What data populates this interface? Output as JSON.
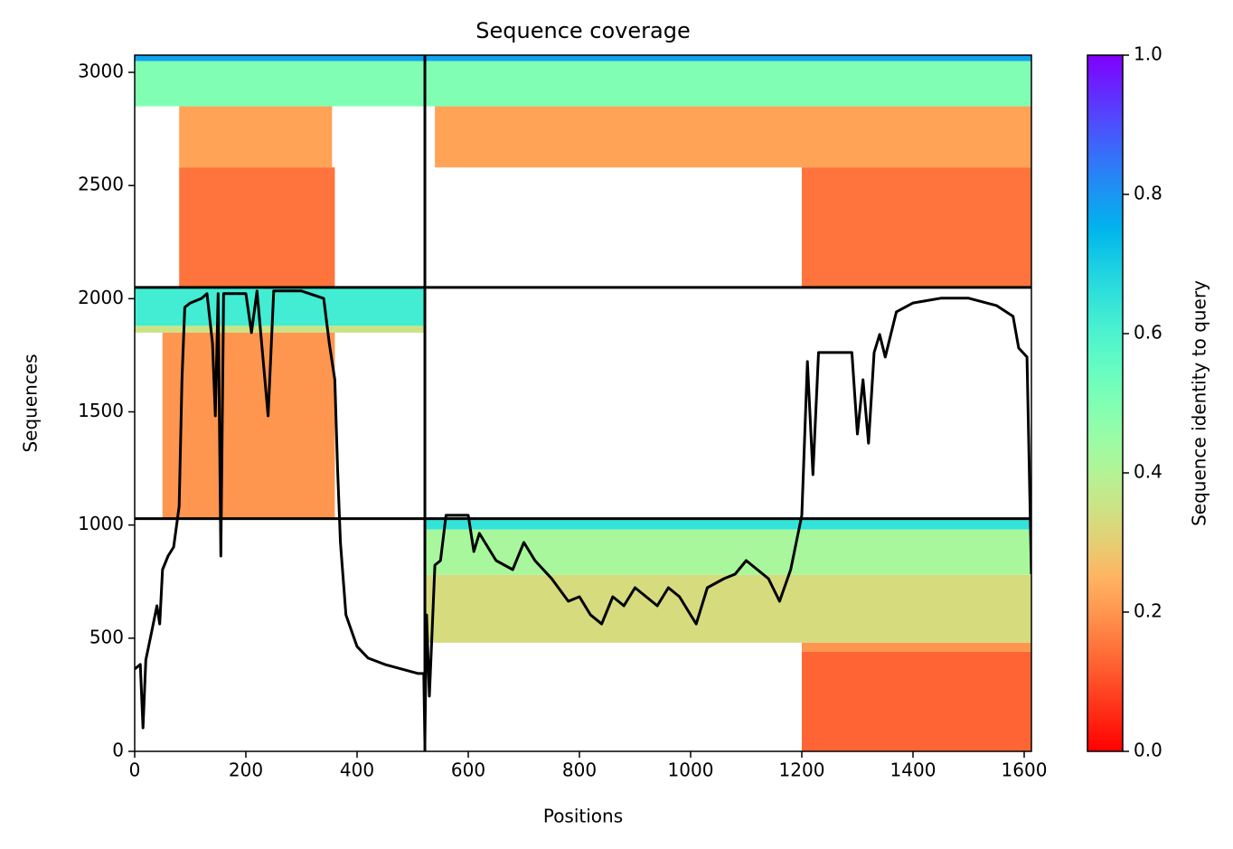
{
  "chart_data": {
    "type": "coverage",
    "title": "Sequence coverage",
    "xlabel": "Positions",
    "ylabel": "Sequences",
    "colorbar_label": "Sequence identity to query",
    "xlim": [
      0,
      1613
    ],
    "ylim": [
      0,
      3076
    ],
    "xticks": [
      0,
      200,
      400,
      600,
      800,
      1000,
      1200,
      1400,
      1600
    ],
    "yticks": [
      0,
      500,
      1000,
      1500,
      2000,
      2500,
      3000
    ],
    "clim": [
      0,
      1
    ],
    "cticks": [
      {
        "value": 0,
        "label": "0.0"
      },
      {
        "value": 0.2,
        "label": "0.2"
      },
      {
        "value": 0.4,
        "label": "0.4"
      },
      {
        "value": 0.6,
        "label": "0.6"
      },
      {
        "value": 0.8,
        "label": "0.8"
      },
      {
        "value": 1,
        "label": "1.0"
      }
    ],
    "colormap": "rainbow_r",
    "line_color": "#000000",
    "boundaries_x": [
      522
    ],
    "boundaries_y": [
      1028,
      2050
    ],
    "regions": [
      {
        "x": [
          0,
          522
        ],
        "y": [
          2850,
          3050
        ],
        "identity": 0.5
      },
      {
        "x": [
          0,
          522
        ],
        "y": [
          3050,
          3076
        ],
        "identity": 0.78
      },
      {
        "x": [
          80,
          355
        ],
        "y": [
          2580,
          2850
        ],
        "identity": 0.22
      },
      {
        "x": [
          80,
          360
        ],
        "y": [
          2050,
          2580
        ],
        "identity": 0.15
      },
      {
        "x": [
          522,
          1613
        ],
        "y": [
          2850,
          3050
        ],
        "identity": 0.5
      },
      {
        "x": [
          522,
          1613
        ],
        "y": [
          3050,
          3076
        ],
        "identity": 0.78
      },
      {
        "x": [
          540,
          1613
        ],
        "y": [
          2580,
          2850
        ],
        "identity": 0.22
      },
      {
        "x": [
          1200,
          1613
        ],
        "y": [
          2050,
          2580
        ],
        "identity": 0.15
      },
      {
        "x": [
          0,
          522
        ],
        "y": [
          1880,
          2050
        ],
        "identity": 0.62
      },
      {
        "x": [
          0,
          522
        ],
        "y": [
          1850,
          1880
        ],
        "identity": 0.35
      },
      {
        "x": [
          50,
          360
        ],
        "y": [
          1028,
          1850
        ],
        "identity": 0.2
      },
      {
        "x": [
          522,
          1613
        ],
        "y": [
          980,
          1028
        ],
        "identity": 0.65
      },
      {
        "x": [
          522,
          1613
        ],
        "y": [
          780,
          980
        ],
        "identity": 0.42
      },
      {
        "x": [
          522,
          1613
        ],
        "y": [
          480,
          780
        ],
        "identity": 0.33
      },
      {
        "x": [
          1200,
          1613
        ],
        "y": [
          440,
          480
        ],
        "identity": 0.2
      },
      {
        "x": [
          1200,
          1613
        ],
        "y": [
          0,
          440
        ],
        "identity": 0.13
      }
    ],
    "x": [
      0,
      10,
      15,
      20,
      30,
      40,
      45,
      50,
      60,
      70,
      80,
      85,
      90,
      100,
      120,
      130,
      140,
      145,
      150,
      155,
      160,
      200,
      210,
      220,
      240,
      250,
      300,
      340,
      350,
      360,
      365,
      370,
      380,
      400,
      420,
      450,
      480,
      510,
      520,
      522,
      525,
      530,
      540,
      550,
      560,
      600,
      610,
      620,
      650,
      680,
      700,
      720,
      750,
      780,
      800,
      820,
      840,
      860,
      880,
      900,
      920,
      940,
      960,
      980,
      1000,
      1010,
      1030,
      1060,
      1080,
      1100,
      1120,
      1140,
      1160,
      1180,
      1200,
      1210,
      1220,
      1230,
      1250,
      1290,
      1300,
      1310,
      1320,
      1330,
      1340,
      1350,
      1370,
      1400,
      1450,
      1500,
      1550,
      1580,
      1590,
      1605,
      1613
    ],
    "values": [
      364,
      384,
      104,
      404,
      523,
      643,
      563,
      803,
      863,
      903,
      1083,
      1642,
      1962,
      1981,
      2001,
      2022,
      1802,
      1482,
      2022,
      863,
      2022,
      2022,
      1850,
      2034,
      1482,
      2034,
      2034,
      2001,
      1802,
      1642,
      1242,
      923,
      603,
      463,
      412,
      384,
      364,
      344,
      344,
      44,
      603,
      244,
      823,
      843,
      1043,
      1043,
      883,
      963,
      843,
      803,
      923,
      843,
      763,
      663,
      683,
      603,
      563,
      683,
      643,
      723,
      683,
      643,
      723,
      683,
      603,
      563,
      723,
      763,
      783,
      843,
      803,
      763,
      663,
      803,
      1043,
      1722,
      1223,
      1762,
      1762,
      1762,
      1402,
      1642,
      1362,
      1762,
      1842,
      1742,
      1942,
      1981,
      2002,
      2002,
      1970,
      1922,
      1782,
      1742,
      783
    ]
  }
}
